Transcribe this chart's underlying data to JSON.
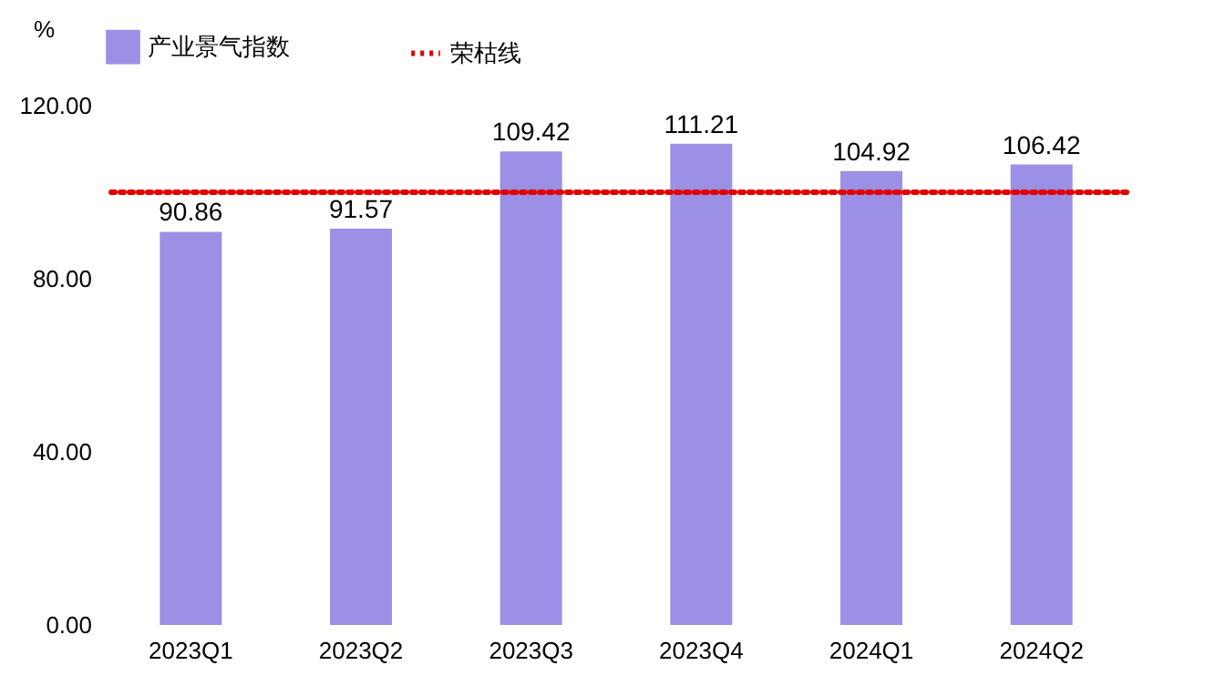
{
  "chart_data": {
    "type": "bar",
    "ylabel": "%",
    "categories": [
      "2023Q1",
      "2023Q2",
      "2023Q3",
      "2023Q4",
      "2024Q1",
      "2024Q2"
    ],
    "series": [
      {
        "name": "产业景气指数",
        "color": "#9b8fe6",
        "values": [
          90.86,
          91.57,
          109.42,
          111.21,
          104.92,
          106.42
        ]
      }
    ],
    "data_labels": true,
    "ylim": [
      0,
      120
    ],
    "yticks": [
      {
        "value": 0,
        "label": "0.00"
      },
      {
        "value": 40,
        "label": "40.00"
      },
      {
        "value": 80,
        "label": "80.00"
      },
      {
        "value": 120,
        "label": "120.00"
      }
    ],
    "ref_lines": [
      {
        "axis": "y",
        "value": 100,
        "label": "荣枯线",
        "color": "#e00000",
        "line_style": "dotted"
      }
    ],
    "legend": "top",
    "grid": false
  }
}
